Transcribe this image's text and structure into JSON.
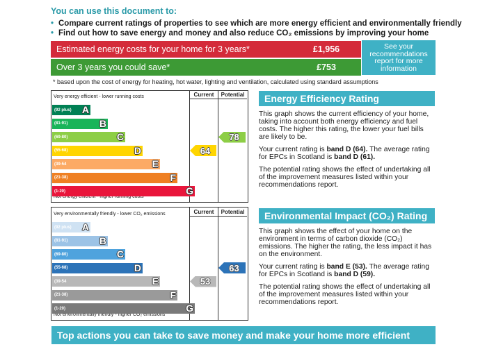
{
  "intro": {
    "heading": "You can use this document to:",
    "bullets": [
      "Compare current ratings of properties to see which are more energy efficient and environmentally friendly",
      "Find out how to save energy and money and also reduce CO₂ emissions by improving your home"
    ]
  },
  "costs": {
    "estimated_label": "Estimated energy costs for your home for 3 years*",
    "estimated_value": "£1,956",
    "save_label": "Over 3 years you could save*",
    "save_value": "£753",
    "see_box": "See your recommendations report for more information",
    "footnote": "* based upon the cost of energy for heating, hot water, lighting and ventilation, calculated using standard assumptions",
    "colors": {
      "estimated": "#d42b3a",
      "save": "#3d9a35",
      "see": "#3fb1c5"
    }
  },
  "energy_chart": {
    "top_note": "Very energy efficient - lower running costs",
    "bottom_note": "Not energy efficient - higher running costs",
    "col_current": "Current",
    "col_potential": "Potential",
    "bands": [
      {
        "range": "(92 plus)",
        "letter": "A",
        "color": "#008054"
      },
      {
        "range": "(81-91)",
        "letter": "B",
        "color": "#19b459"
      },
      {
        "range": "(69-80)",
        "letter": "C",
        "color": "#8dce46"
      },
      {
        "range": "(55-68)",
        "letter": "D",
        "color": "#ffd500"
      },
      {
        "range": "(39-54",
        "letter": "E",
        "color": "#fcaa65"
      },
      {
        "range": "(21-38)",
        "letter": "F",
        "color": "#ef8023"
      },
      {
        "range": "(1-20)",
        "letter": "G",
        "color": "#e9153b"
      }
    ],
    "current": {
      "value": "64",
      "band": "D",
      "color": "#ffd500"
    },
    "potential": {
      "value": "78",
      "band": "C",
      "color": "#8dce46"
    }
  },
  "env_chart": {
    "top_note": "Very environmentally friendly - lower CO₂ emissions",
    "bottom_note": "Not environmentally friendly - higher CO₂ emissions",
    "col_current": "Current",
    "col_potential": "Potential",
    "bands": [
      {
        "range": "(92 plus)",
        "letter": "A",
        "color": "#cfe2f3"
      },
      {
        "range": "(81-91)",
        "letter": "B",
        "color": "#9cc3e6"
      },
      {
        "range": "(69-80)",
        "letter": "C",
        "color": "#4fa3dd"
      },
      {
        "range": "(55-68)",
        "letter": "D",
        "color": "#2c73b8"
      },
      {
        "range": "(39-54",
        "letter": "E",
        "color": "#b8b8b8"
      },
      {
        "range": "(21-38)",
        "letter": "F",
        "color": "#9a9a9a"
      },
      {
        "range": "(1-20)",
        "letter": "G",
        "color": "#7a7a7a"
      }
    ],
    "current": {
      "value": "53",
      "band": "E",
      "color": "#b8b8b8"
    },
    "potential": {
      "value": "63",
      "band": "D",
      "color": "#2c73b8"
    }
  },
  "energy_panel": {
    "title": "Energy Efficiency Rating",
    "p1": "This graph shows the current efficiency of your home, taking into account both energy efficiency and fuel costs. The higher this rating, the lower your fuel bills are likely to be.",
    "p2_pre": "Your current rating is ",
    "p2_bold1": "band D (64).",
    "p2_mid": " The average rating for EPCs in Scotland is ",
    "p2_bold2": "band D (61).",
    "p3": "The potential rating shows the effect of undertaking all of the improvement measures listed within your recommendations report."
  },
  "env_panel": {
    "title": "Environmental Impact (CO₂) Rating",
    "p1": "This graph shows the effect of your home on the environment in terms of carbon dioxide (CO₂) emissions. The higher the rating, the less impact it has on the environment.",
    "p2_pre": "Your current rating is ",
    "p2_bold1": "band E (53).",
    "p2_mid": " The average rating for EPCs in Scotland is ",
    "p2_bold2": "band D (59).",
    "p3": "The potential rating shows the effect of undertaking all of the improvement measures listed within your recommendations report."
  },
  "bottom": {
    "title": "Top actions you can take to save money and make your home more efficient"
  }
}
